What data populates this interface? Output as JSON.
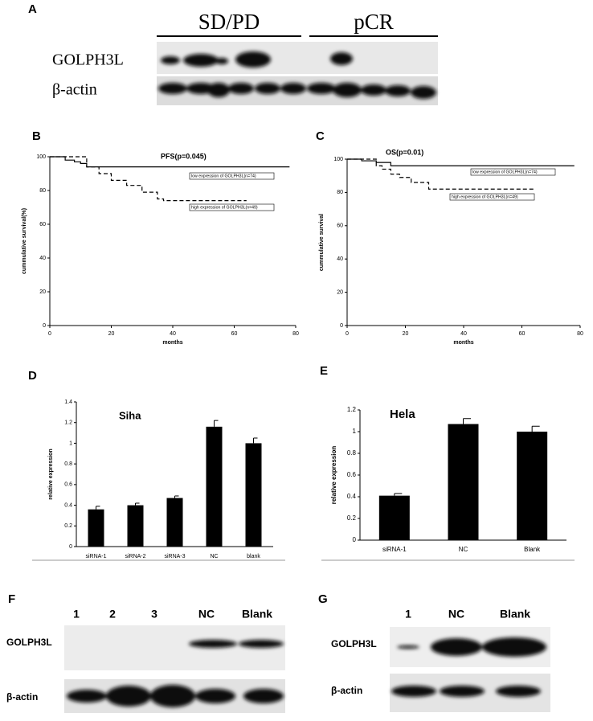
{
  "panel_labels": [
    "A",
    "B",
    "C",
    "D",
    "E",
    "F",
    "G"
  ],
  "blot_a": {
    "groups": [
      "SD/PD",
      "pCR"
    ],
    "rows": [
      "GOLPH3L",
      "β-actin"
    ]
  },
  "blot_f": {
    "lanes": [
      "1",
      "2",
      "3",
      "NC",
      "Blank"
    ],
    "rows": [
      "GOLPH3L",
      "β-actin"
    ]
  },
  "blot_g": {
    "lanes": [
      "1",
      "NC",
      "Blank"
    ],
    "rows": [
      "GOLPH3L",
      "β-actin"
    ]
  },
  "chart_data": [
    {
      "type": "line",
      "title": "PFS(p=0.045)",
      "y_label": "cummulative survival(%)",
      "x_label": "months",
      "xlim": [
        0,
        80
      ],
      "xticks": [
        0,
        20,
        40,
        60,
        80
      ],
      "ylim": [
        0,
        100
      ],
      "yticks": [
        0,
        20,
        40,
        60,
        80,
        100
      ],
      "series": [
        {
          "name": "low expression of GOLPH3L(n=74)",
          "color": "#000000",
          "linestyle": "solid",
          "x": [
            0,
            5,
            8,
            10,
            12,
            78
          ],
          "values": [
            100,
            98,
            97,
            96,
            94,
            94
          ]
        },
        {
          "name": "high expression of GOLPH3L(n=49)",
          "color": "#000000",
          "linestyle": "dashed",
          "x": [
            0,
            12,
            16,
            20,
            25,
            30,
            35,
            37,
            64
          ],
          "values": [
            100,
            94,
            90,
            86,
            83,
            79,
            75,
            74,
            74
          ]
        }
      ]
    },
    {
      "type": "line",
      "title": "OS(p=0.01)",
      "y_label": "cummulative survival",
      "x_label": "months",
      "xlim": [
        0,
        80
      ],
      "xticks": [
        0,
        20,
        40,
        60,
        80
      ],
      "ylim": [
        0,
        100
      ],
      "yticks": [
        0,
        20,
        40,
        60,
        80,
        100
      ],
      "series": [
        {
          "name": "low expression of GOLPH3L(n=74)",
          "color": "#000000",
          "linestyle": "solid",
          "x": [
            0,
            5,
            10,
            15,
            78
          ],
          "values": [
            100,
            99,
            98,
            96,
            96
          ]
        },
        {
          "name": "high expression of GOLPH3L(n=49)",
          "color": "#000000",
          "linestyle": "dashed",
          "x": [
            0,
            10,
            12,
            15,
            18,
            22,
            28,
            64
          ],
          "values": [
            100,
            96,
            94,
            91,
            89,
            86,
            82,
            82
          ]
        }
      ]
    },
    {
      "type": "bar",
      "title": "Siha",
      "y_label": "relative expression",
      "color": "#000000",
      "categories": [
        "siRNA-1",
        "siRNA-2",
        "siRNA-3",
        "NC",
        "blank"
      ],
      "values": [
        0.36,
        0.4,
        0.47,
        1.16,
        1.0
      ],
      "errors": [
        0.03,
        0.02,
        0.02,
        0.06,
        0.05
      ],
      "ylim": [
        0,
        1.4
      ],
      "yticks": [
        0,
        0.2,
        0.4,
        0.6,
        0.8,
        1,
        1.2,
        1.4
      ]
    },
    {
      "type": "bar",
      "title": "Hela",
      "y_label": "relative expression",
      "color": "#000000",
      "categories": [
        "siRNA-1",
        "NC",
        "Blank"
      ],
      "values": [
        0.41,
        1.07,
        1.0
      ],
      "errors": [
        0.02,
        0.05,
        0.05
      ],
      "ylim": [
        0,
        1.2
      ],
      "yticks": [
        0,
        0.2,
        0.4,
        0.6,
        0.8,
        1,
        1.2
      ]
    }
  ]
}
